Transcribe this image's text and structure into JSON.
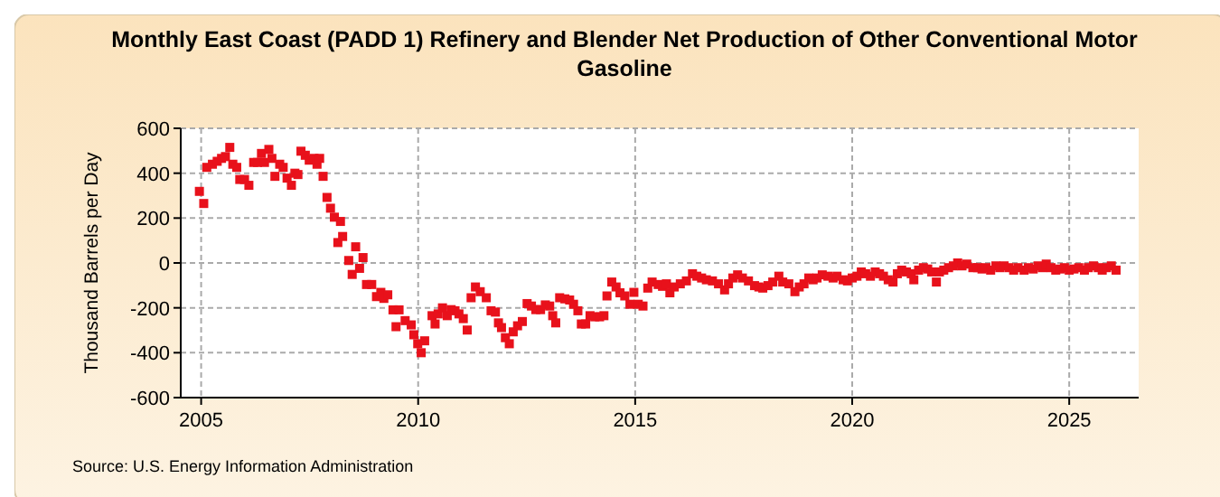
{
  "chart_data": {
    "type": "scatter",
    "title": "Monthly East Coast (PADD 1) Refinery and Blender Net Production of Other Conventional Motor Gasoline",
    "ylabel": "Thousand Barrels per Day",
    "annotations": [
      "Source: U.S. Energy Information Administration"
    ],
    "marker": "square",
    "grid": true,
    "xlim": [
      2004.53,
      2026.6
    ],
    "xticks": [
      2005,
      2010,
      2015,
      2020,
      2025
    ],
    "ylim": [
      -600,
      600
    ],
    "yticks": [
      -600,
      -400,
      -200,
      0,
      200,
      400,
      600
    ],
    "series": [
      {
        "color": "#e8111b",
        "x": [
          2004.96,
          2005.06,
          2005.13,
          2005.26,
          2005.37,
          2005.47,
          2005.56,
          2005.66,
          2005.73,
          2005.82,
          2005.89,
          2006.0,
          2006.1,
          2006.21,
          2006.3,
          2006.39,
          2006.46,
          2006.56,
          2006.63,
          2006.7,
          2006.81,
          2006.89,
          2006.98,
          2007.08,
          2007.16,
          2007.23,
          2007.3,
          2007.4,
          2007.49,
          2007.6,
          2007.67,
          2007.73,
          2007.81,
          2007.9,
          2007.98,
          2008.07,
          2008.15,
          2008.21,
          2008.26,
          2008.4,
          2008.48,
          2008.56,
          2008.65,
          2008.73,
          2008.81,
          2008.93,
          2009.04,
          2009.14,
          2009.21,
          2009.3,
          2009.42,
          2009.49,
          2009.56,
          2009.7,
          2009.84,
          2009.9,
          2009.99,
          2010.07,
          2010.15,
          2010.32,
          2010.39,
          2010.46,
          2010.56,
          2010.67,
          2010.76,
          2010.85,
          2010.94,
          2011.04,
          2011.13,
          2011.22,
          2011.32,
          2011.43,
          2011.57,
          2011.68,
          2011.78,
          2011.85,
          2011.92,
          2012.01,
          2012.1,
          2012.19,
          2012.29,
          2012.4,
          2012.51,
          2012.61,
          2012.71,
          2012.82,
          2012.93,
          2013.03,
          2013.1,
          2013.17,
          2013.26,
          2013.38,
          2013.49,
          2013.58,
          2013.68,
          2013.76,
          2013.86,
          2013.96,
          2014.07,
          2014.18,
          2014.28,
          2014.35,
          2014.46,
          2014.56,
          2014.65,
          2014.76,
          2014.88,
          2014.97,
          2015.07,
          2015.18,
          2015.29,
          2015.39,
          2015.53,
          2015.63,
          2015.72,
          2015.8,
          2015.9,
          2016.04,
          2016.18,
          2016.32,
          2016.42,
          2016.53,
          2016.64,
          2016.78,
          2016.92,
          2017.06,
          2017.15,
          2017.25,
          2017.36,
          2017.47,
          2017.61,
          2017.75,
          2017.85,
          2017.94,
          2018.06,
          2018.17,
          2018.31,
          2018.4,
          2018.54,
          2018.68,
          2018.78,
          2018.89,
          2019.0,
          2019.1,
          2019.19,
          2019.31,
          2019.44,
          2019.56,
          2019.65,
          2019.79,
          2019.89,
          2020.0,
          2020.11,
          2020.21,
          2020.31,
          2020.42,
          2020.53,
          2020.63,
          2020.72,
          2020.83,
          2020.94,
          2021.04,
          2021.14,
          2021.25,
          2021.36,
          2021.42,
          2021.53,
          2021.64,
          2021.74,
          2021.83,
          2021.94,
          2022.01,
          2022.11,
          2022.22,
          2022.33,
          2022.43,
          2022.53,
          2022.64,
          2022.78,
          2022.89,
          2022.99,
          2023.08,
          2023.19,
          2023.31,
          2023.4,
          2023.5,
          2023.61,
          2023.72,
          2023.82,
          2023.96,
          2024.06,
          2024.17,
          2024.28,
          2024.38,
          2024.47,
          2024.58,
          2024.69,
          2024.79,
          2024.89,
          2025.0,
          2025.11,
          2025.22,
          2025.35,
          2025.44,
          2025.56,
          2025.67,
          2025.76,
          2025.86,
          2025.97,
          2026.08
        ],
        "values": [
          319,
          265,
          426,
          440,
          453,
          466,
          474,
          515,
          440,
          426,
          372,
          372,
          346,
          448,
          448,
          488,
          448,
          506,
          466,
          386,
          440,
          426,
          378,
          346,
          400,
          394,
          498,
          480,
          458,
          466,
          440,
          466,
          386,
          292,
          244,
          204,
          91,
          185,
          118,
          11,
          -51,
          72,
          -24,
          24,
          -96,
          -96,
          -150,
          -131,
          -158,
          -142,
          -209,
          -284,
          -209,
          -257,
          -276,
          -320,
          -360,
          -400,
          -347,
          -235,
          -272,
          -227,
          -200,
          -235,
          -208,
          -213,
          -227,
          -248,
          -299,
          -155,
          -107,
          -128,
          -155,
          -213,
          -219,
          -267,
          -288,
          -333,
          -360,
          -307,
          -280,
          -261,
          -181,
          -192,
          -208,
          -208,
          -187,
          -192,
          -235,
          -267,
          -155,
          -160,
          -165,
          -184,
          -213,
          -272,
          -272,
          -235,
          -240,
          -240,
          -235,
          -147,
          -85,
          -107,
          -133,
          -147,
          -184,
          -131,
          -184,
          -192,
          -112,
          -85,
          -96,
          -104,
          -93,
          -133,
          -107,
          -93,
          -80,
          -48,
          -59,
          -67,
          -75,
          -80,
          -93,
          -120,
          -93,
          -67,
          -53,
          -67,
          -80,
          -101,
          -107,
          -112,
          -101,
          -85,
          -59,
          -85,
          -93,
          -128,
          -107,
          -93,
          -67,
          -75,
          -67,
          -53,
          -59,
          -67,
          -59,
          -75,
          -80,
          -67,
          -59,
          -40,
          -48,
          -59,
          -40,
          -48,
          -59,
          -75,
          -85,
          -48,
          -32,
          -40,
          -48,
          -75,
          -32,
          -21,
          -27,
          -40,
          -85,
          -40,
          -32,
          -21,
          -13,
          0,
          -13,
          -5,
          -21,
          -21,
          -27,
          -21,
          -32,
          -13,
          -21,
          -13,
          -21,
          -32,
          -21,
          -32,
          -21,
          -27,
          -13,
          -21,
          -5,
          -21,
          -32,
          -27,
          -21,
          -32,
          -27,
          -21,
          -32,
          -21,
          -13,
          -21,
          -32,
          -21,
          -13,
          -32
        ]
      }
    ]
  }
}
